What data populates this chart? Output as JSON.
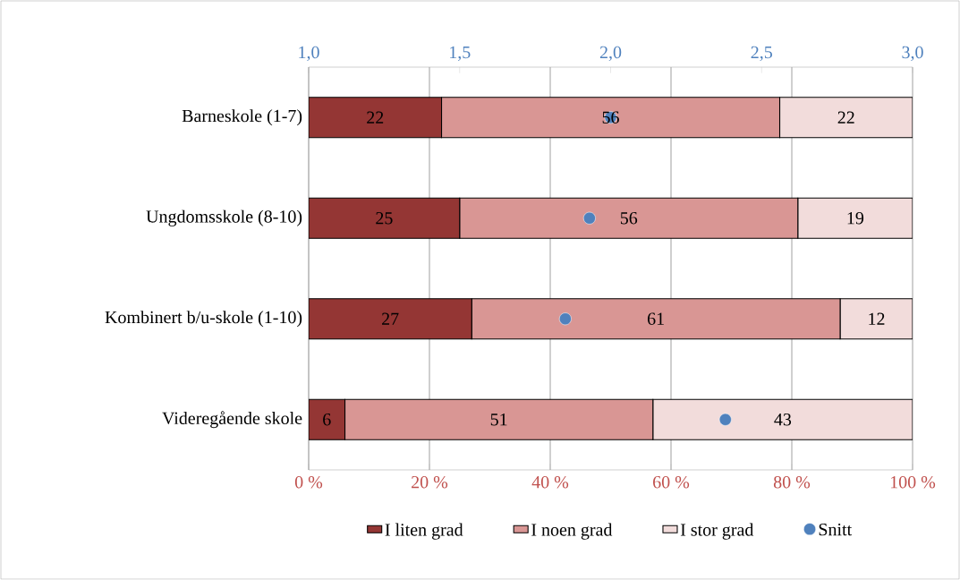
{
  "chart_data": {
    "type": "bar",
    "orientation": "horizontal",
    "stacked": true,
    "categories": [
      "Barneskole (1-7)",
      "Ungdomsskole (8-10)",
      "Kombinert b/u-skole (1-10)",
      "Videregående skole"
    ],
    "series": [
      {
        "name": "I liten grad",
        "color": "#943634",
        "values": [
          22,
          25,
          27,
          6
        ],
        "value_labels": [
          "22",
          "25",
          "27",
          "6"
        ]
      },
      {
        "name": "I noen grad",
        "color": "#d99694",
        "values": [
          56,
          56,
          61,
          51
        ],
        "value_labels": [
          "56",
          "56",
          "61",
          "51"
        ]
      },
      {
        "name": "I stor grad",
        "color": "#f2dcdb",
        "values": [
          22,
          19,
          12,
          43
        ],
        "value_labels": [
          "22",
          "19",
          "12",
          "43"
        ]
      },
      {
        "name": "Snitt",
        "type": "scatter",
        "axis": "x2",
        "color": "#4f81bd",
        "values": [
          2.0,
          1.93,
          1.85,
          2.38
        ]
      }
    ],
    "xlim": [
      0,
      100
    ],
    "xticks": [
      {
        "value": 0,
        "label": "0 %"
      },
      {
        "value": 20,
        "label": "20 %"
      },
      {
        "value": 40,
        "label": "40 %"
      },
      {
        "value": 60,
        "label": "60 %"
      },
      {
        "value": 80,
        "label": "80 %"
      },
      {
        "value": 100,
        "label": "100 %"
      }
    ],
    "x2lim": [
      1,
      3
    ],
    "x2ticks": [
      {
        "value": 1,
        "label": "1,0"
      },
      {
        "value": 1.5,
        "label": "1,5"
      },
      {
        "value": 2,
        "label": "2,0"
      },
      {
        "value": 2.5,
        "label": "2,5"
      },
      {
        "value": 3,
        "label": "3,0"
      }
    ],
    "grid": "x",
    "legend": "bottom",
    "marker": "circle"
  }
}
